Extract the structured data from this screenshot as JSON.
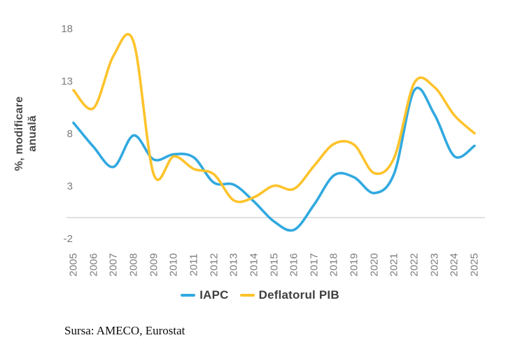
{
  "y_axis": {
    "title_line1": "%, modificare",
    "title_line2": "anuală",
    "ticks": [
      "18",
      "13",
      "8",
      "3",
      "-2"
    ]
  },
  "x_axis": {
    "ticks": [
      "2005",
      "2006",
      "2007",
      "2008",
      "2009",
      "2010",
      "2011",
      "2012",
      "2013",
      "2014",
      "2015",
      "2016",
      "2017",
      "2018",
      "2019",
      "2020",
      "2021",
      "2022",
      "2023",
      "2024",
      "2025"
    ]
  },
  "legend": {
    "items": [
      {
        "label": "IAPC",
        "color": "#31A9E0"
      },
      {
        "label": "Deflatorul PIB",
        "color": "#FDC32B"
      }
    ]
  },
  "source": {
    "text": "Sursa: AMECO, Eurostat"
  },
  "colors": {
    "iapc_line": "#31A9E0",
    "deflator_line": "#FDC32B",
    "gridline": "#dcdcdc",
    "tick_label": "#7c7c7c",
    "axis_title": "#484848",
    "legend_text": "#404040",
    "background": "#ffffff"
  },
  "chart_data": {
    "type": "line",
    "title": "",
    "xlabel": "",
    "ylabel": "%, modificare anuală",
    "x": [
      2005,
      2006,
      2007,
      2008,
      2009,
      2010,
      2011,
      2012,
      2013,
      2014,
      2015,
      2016,
      2017,
      2018,
      2019,
      2020,
      2021,
      2022,
      2023,
      2024,
      2025
    ],
    "series": [
      {
        "name": "IAPC",
        "color": "#31A9E0",
        "values": [
          9.1,
          6.8,
          4.9,
          7.9,
          5.6,
          6.1,
          5.8,
          3.4,
          3.2,
          1.6,
          -0.3,
          -1.1,
          1.3,
          4.1,
          3.9,
          2.4,
          4.3,
          12.2,
          9.9,
          5.9,
          6.9
        ]
      },
      {
        "name": "Deflatorul PIB",
        "color": "#FDC32B",
        "values": [
          12.2,
          10.5,
          15.5,
          16.8,
          4.2,
          5.9,
          4.7,
          4.2,
          1.7,
          2.0,
          3.1,
          2.8,
          5.0,
          7.1,
          7.0,
          4.3,
          5.8,
          12.9,
          12.5,
          9.8,
          8.1
        ]
      }
    ],
    "ylim": [
      -2,
      18
    ],
    "yticks": [
      18,
      13,
      8,
      3,
      -2
    ],
    "grid": "single horizontal gridline at y=0 only",
    "line_style": "smoothed spline, width ~3.5px, no markers",
    "legend_position": "bottom-center"
  }
}
